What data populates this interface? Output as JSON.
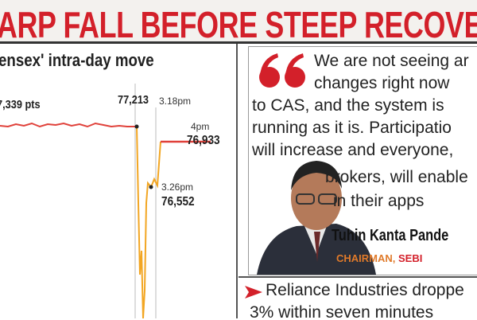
{
  "header": {
    "title": "ARP FALL BEFORE STEEP RECOVERY"
  },
  "graphic": {
    "title": "ensex' intra-day move",
    "annotations": [
      {
        "label": "7,339 pts"
      },
      {
        "label": "77,213",
        "time": "3.18pm"
      },
      {
        "label": "76,933",
        "time": "4pm"
      },
      {
        "label": "76,552",
        "time": "3.26pm"
      }
    ]
  },
  "quote": {
    "lines": [
      "We are not seeing ar",
      "changes right now",
      "to CAS, and the system is",
      "running as it is. Participatio",
      "will increase and everyone,",
      "brokers, will enable",
      "in their apps"
    ],
    "speaker": "Tuhin Kanta Pande",
    "role": "CHAIRMAN,",
    "organization": "SEBI"
  },
  "bullet": {
    "lines": [
      "Reliance Industries droppe",
      "3% within seven minutes"
    ]
  }
}
